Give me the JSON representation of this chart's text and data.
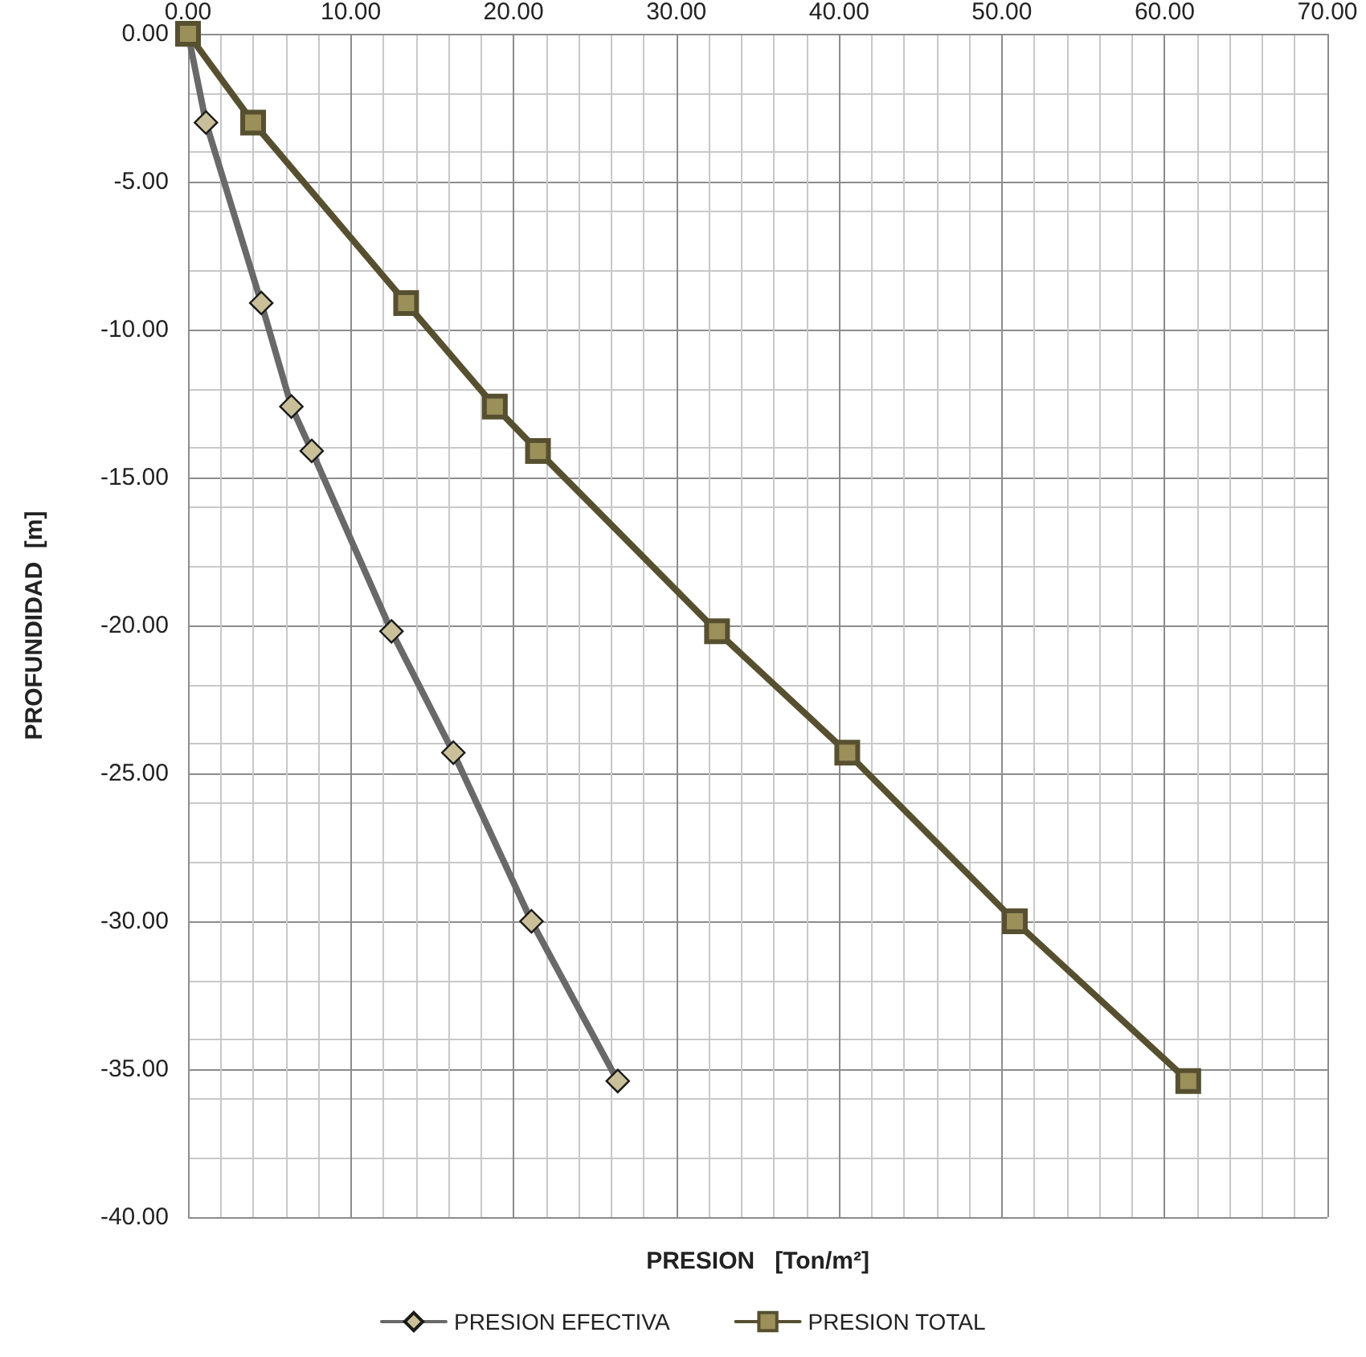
{
  "chart_data": {
    "type": "line",
    "xlabel": "PRESION   [Ton/m²]",
    "ylabel": "PROFUNDIDAD  [m]",
    "series": [
      {
        "name": "PRESION EFECTIVA",
        "color": "#696969",
        "marker": "diamond",
        "x": [
          0,
          1.1,
          4.5,
          6.35,
          7.6,
          12.5,
          16.3,
          21.1,
          26.4
        ],
        "values": [
          0,
          -3.0,
          -9.1,
          -12.6,
          -14.1,
          -20.2,
          -24.3,
          -30.0,
          -35.4
        ]
      },
      {
        "name": "PRESION TOTAL",
        "color": "#575030",
        "marker": "square",
        "x": [
          0,
          4.0,
          13.4,
          18.85,
          21.5,
          32.5,
          40.5,
          50.8,
          61.45
        ],
        "values": [
          0,
          -3.0,
          -9.1,
          -12.6,
          -14.1,
          -20.2,
          -24.3,
          -30.0,
          -35.4
        ]
      }
    ],
    "xlim": [
      0,
      70
    ],
    "xticks": [
      {
        "value": 0,
        "label": "0.00"
      },
      {
        "value": 10,
        "label": "10.00"
      },
      {
        "value": 20,
        "label": "20.00"
      },
      {
        "value": 30,
        "label": "30.00"
      },
      {
        "value": 40,
        "label": "40.00"
      },
      {
        "value": 50,
        "label": "50.00"
      },
      {
        "value": 60,
        "label": "60.00"
      },
      {
        "value": 70,
        "label": "70.00"
      }
    ],
    "ylim": [
      -40,
      0
    ],
    "yticks": [
      {
        "value": 0,
        "label": "0.00"
      },
      {
        "value": -5,
        "label": "-5.00"
      },
      {
        "value": -10,
        "label": "-10.00"
      },
      {
        "value": -15,
        "label": "-15.00"
      },
      {
        "value": -20,
        "label": "-20.00"
      },
      {
        "value": -25,
        "label": "-25.00"
      },
      {
        "value": -30,
        "label": "-30.00"
      },
      {
        "value": -35,
        "label": "-35.00"
      },
      {
        "value": -40,
        "label": "-40.00"
      }
    ],
    "grid": true,
    "legend": "bottom",
    "line_style": "solid"
  }
}
